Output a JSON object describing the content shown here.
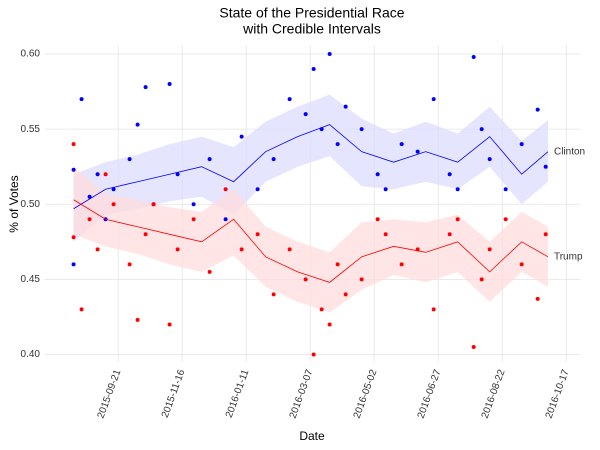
{
  "chart_data": {
    "type": "scatter",
    "title": "State of the Presidential Race",
    "subtitle": "with Credible Intervals",
    "xlabel": "Date",
    "ylabel": "% of Votes",
    "xlim": [
      "2015-07-19",
      "2016-10-29"
    ],
    "xticks": [
      "2015-09-21",
      "2015-11-16",
      "2016-01-11",
      "2016-03-07",
      "2016-05-02",
      "2016-06-27",
      "2016-08-22",
      "2016-10-17"
    ],
    "ylim": [
      0.395,
      0.606
    ],
    "yticks": [
      {
        "value": 0.4,
        "label": "0.40"
      },
      0.45,
      {
        "value": 0.5,
        "label": "0.50"
      },
      0.55,
      {
        "value": 0.6,
        "label": "0.60"
      }
    ],
    "grid": true,
    "series": [
      {
        "name": "Clinton",
        "color": "#0000ff",
        "band_color": "#dcdcff",
        "x": [
          "2015-08-13",
          "2015-08-13",
          "2015-08-20",
          "2015-08-27",
          "2015-09-03",
          "2015-09-10",
          "2015-09-17",
          "2015-10-01",
          "2015-10-08",
          "2015-10-15",
          "2015-10-22",
          "2015-11-05",
          "2015-11-12",
          "2015-11-26",
          "2015-12-10",
          "2015-12-24",
          "2016-01-07",
          "2016-01-21",
          "2016-02-04",
          "2016-02-18",
          "2016-03-03",
          "2016-03-10",
          "2016-03-17",
          "2016-03-24",
          "2016-03-31",
          "2016-04-07",
          "2016-04-21",
          "2016-05-05",
          "2016-05-12",
          "2016-05-26",
          "2016-06-09",
          "2016-06-23",
          "2016-07-07",
          "2016-07-14",
          "2016-07-28",
          "2016-08-04",
          "2016-08-11",
          "2016-08-25",
          "2016-09-08",
          "2016-09-22",
          "2016-09-29"
        ],
        "values": [
          0.523,
          0.46,
          0.57,
          0.505,
          0.52,
          0.49,
          0.51,
          0.53,
          0.553,
          0.578,
          0.5,
          0.58,
          0.52,
          0.5,
          0.53,
          0.49,
          0.545,
          0.51,
          0.53,
          0.57,
          0.56,
          0.59,
          0.55,
          0.6,
          0.54,
          0.565,
          0.55,
          0.52,
          0.51,
          0.54,
          0.535,
          0.57,
          0.52,
          0.51,
          0.598,
          0.55,
          0.53,
          0.51,
          0.54,
          0.563,
          0.525
        ],
        "trend": {
          "x": [
            "2015-08-13",
            "2015-09-10",
            "2015-10-08",
            "2015-11-05",
            "2015-12-03",
            "2015-12-31",
            "2016-01-28",
            "2016-02-25",
            "2016-03-24",
            "2016-04-21",
            "2016-05-19",
            "2016-06-16",
            "2016-07-14",
            "2016-08-11",
            "2016-09-08",
            "2016-10-01"
          ],
          "values": [
            0.497,
            0.51,
            0.515,
            0.52,
            0.525,
            0.515,
            0.535,
            0.545,
            0.553,
            0.535,
            0.528,
            0.535,
            0.528,
            0.545,
            0.52,
            0.535
          ],
          "lower": [
            0.475,
            0.493,
            0.497,
            0.502,
            0.505,
            0.493,
            0.515,
            0.525,
            0.532,
            0.512,
            0.51,
            0.515,
            0.51,
            0.525,
            0.5,
            0.515
          ],
          "upper": [
            0.52,
            0.528,
            0.533,
            0.54,
            0.545,
            0.538,
            0.555,
            0.565,
            0.573,
            0.557,
            0.547,
            0.555,
            0.547,
            0.565,
            0.542,
            0.556
          ]
        }
      },
      {
        "name": "Trump",
        "color": "#ff0000",
        "band_color": "#ffdcdc",
        "x": [
          "2015-08-13",
          "2015-08-13",
          "2015-08-20",
          "2015-08-27",
          "2015-09-03",
          "2015-09-10",
          "2015-09-17",
          "2015-10-01",
          "2015-10-08",
          "2015-10-15",
          "2015-10-22",
          "2015-11-05",
          "2015-11-12",
          "2015-11-26",
          "2015-12-10",
          "2015-12-24",
          "2016-01-07",
          "2016-01-21",
          "2016-02-04",
          "2016-02-18",
          "2016-03-03",
          "2016-03-10",
          "2016-03-17",
          "2016-03-24",
          "2016-03-31",
          "2016-04-07",
          "2016-04-21",
          "2016-05-05",
          "2016-05-12",
          "2016-05-26",
          "2016-06-09",
          "2016-06-23",
          "2016-07-07",
          "2016-07-14",
          "2016-07-28",
          "2016-08-04",
          "2016-08-11",
          "2016-08-25",
          "2016-09-08",
          "2016-09-22",
          "2016-09-29"
        ],
        "values": [
          0.54,
          0.478,
          0.43,
          0.49,
          0.47,
          0.52,
          0.5,
          0.46,
          0.423,
          0.48,
          0.5,
          0.42,
          0.47,
          0.49,
          0.455,
          0.51,
          0.47,
          0.48,
          0.44,
          0.47,
          0.45,
          0.4,
          0.43,
          0.42,
          0.46,
          0.44,
          0.45,
          0.49,
          0.48,
          0.46,
          0.47,
          0.43,
          0.48,
          0.49,
          0.405,
          0.45,
          0.47,
          0.49,
          0.46,
          0.437,
          0.48
        ],
        "trend": {
          "x": [
            "2015-08-13",
            "2015-09-10",
            "2015-10-08",
            "2015-11-05",
            "2015-12-03",
            "2015-12-31",
            "2016-01-28",
            "2016-02-25",
            "2016-03-24",
            "2016-04-21",
            "2016-05-19",
            "2016-06-16",
            "2016-07-14",
            "2016-08-11",
            "2016-09-08",
            "2016-10-01"
          ],
          "values": [
            0.503,
            0.49,
            0.485,
            0.48,
            0.475,
            0.49,
            0.465,
            0.455,
            0.448,
            0.465,
            0.472,
            0.468,
            0.475,
            0.455,
            0.475,
            0.465
          ],
          "lower": [
            0.48,
            0.472,
            0.467,
            0.46,
            0.455,
            0.466,
            0.445,
            0.435,
            0.428,
            0.443,
            0.453,
            0.448,
            0.455,
            0.435,
            0.455,
            0.445
          ],
          "upper": [
            0.525,
            0.507,
            0.503,
            0.498,
            0.495,
            0.51,
            0.485,
            0.475,
            0.468,
            0.488,
            0.49,
            0.488,
            0.493,
            0.475,
            0.495,
            0.485
          ]
        }
      }
    ]
  }
}
